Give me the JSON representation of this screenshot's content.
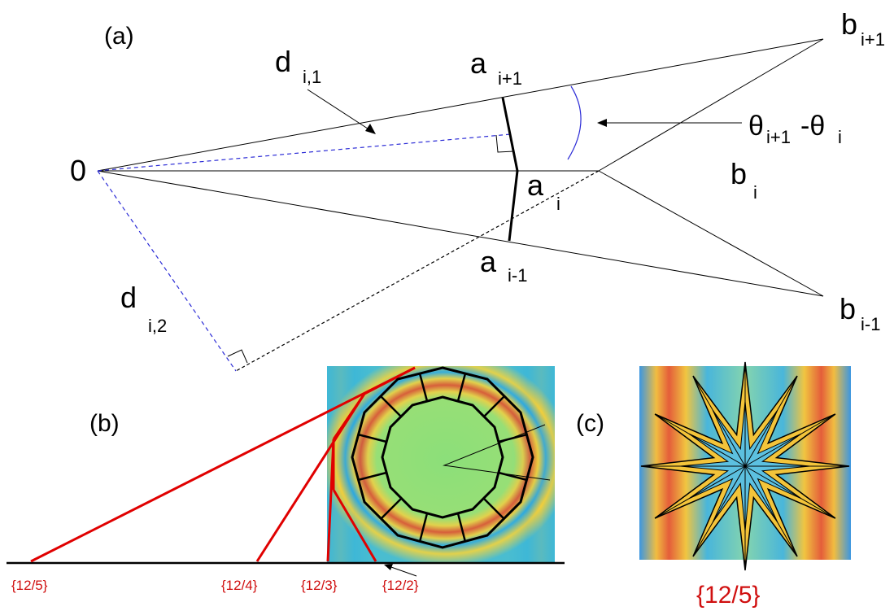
{
  "panel_a": {
    "label": "(a)",
    "origin": "0",
    "d_i1": {
      "main": "d",
      "sub": "i,1"
    },
    "d_i2": {
      "main": "d",
      "sub": "i,2"
    },
    "a_ip1": {
      "main": "a",
      "sub": "i+1"
    },
    "a_i": {
      "main": "a",
      "sub": "i"
    },
    "a_im1": {
      "main": "a",
      "sub": "i-1"
    },
    "b_ip1": {
      "main": "b",
      "sub": "i+1"
    },
    "b_i": {
      "main": "b",
      "sub": "i"
    },
    "b_im1": {
      "main": "b",
      "sub": "i-1"
    },
    "angle": {
      "t1": "θ",
      "s1": "i+1",
      "mid": "-θ",
      "s2": "i"
    }
  },
  "panel_b": {
    "label": "(b)",
    "stars": [
      "{12/5}",
      "{12/4}",
      "{12/3}",
      "{12/2}"
    ]
  },
  "panel_c": {
    "label": "(c)",
    "caption": "{12/5}"
  },
  "colors": {
    "red": "#e00000",
    "dashed_blue": "#2b2bd6",
    "field_green": "#8fe07a",
    "field_yellow": "#f2d23a",
    "field_blue": "#2aa7e0",
    "field_red": "#e0452a"
  }
}
